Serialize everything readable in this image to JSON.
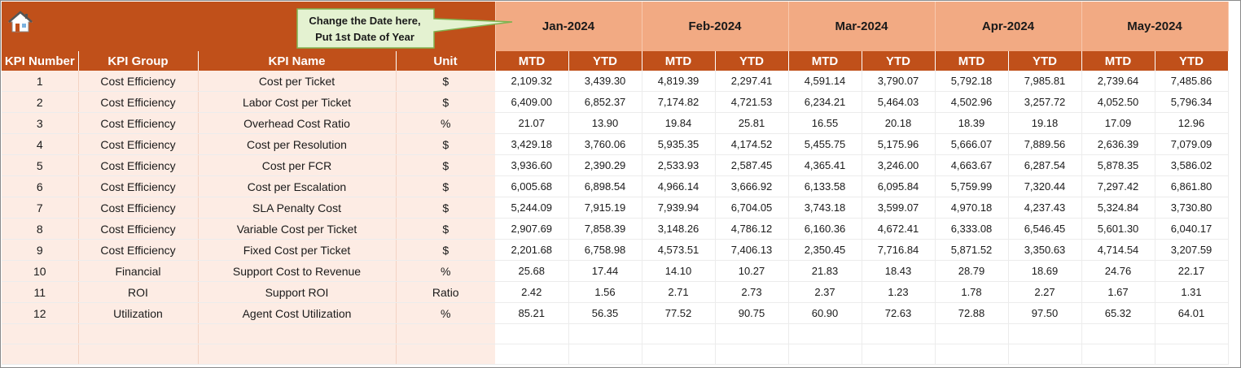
{
  "callout": {
    "line1": "Change the Date here,",
    "line2": "Put 1st Date of Year"
  },
  "icons": {
    "home": "home-icon"
  },
  "months": [
    "Jan-2024",
    "Feb-2024",
    "Mar-2024",
    "Apr-2024",
    "May-2024"
  ],
  "columns": {
    "kpi_number": "KPI Number",
    "kpi_group": "KPI Group",
    "kpi_name": "KPI Name",
    "unit": "Unit",
    "mtd": "MTD",
    "ytd": "YTD"
  },
  "rows": [
    {
      "no": "1",
      "group": "Cost Efficiency",
      "name": "Cost per Ticket",
      "unit": "$",
      "values": [
        "2,109.32",
        "3,439.30",
        "4,819.39",
        "2,297.41",
        "4,591.14",
        "3,790.07",
        "5,792.18",
        "7,985.81",
        "2,739.64",
        "7,485.86"
      ]
    },
    {
      "no": "2",
      "group": "Cost Efficiency",
      "name": "Labor Cost per Ticket",
      "unit": "$",
      "values": [
        "6,409.00",
        "6,852.37",
        "7,174.82",
        "4,721.53",
        "6,234.21",
        "5,464.03",
        "4,502.96",
        "3,257.72",
        "4,052.50",
        "5,796.34"
      ]
    },
    {
      "no": "3",
      "group": "Cost Efficiency",
      "name": "Overhead Cost Ratio",
      "unit": "%",
      "values": [
        "21.07",
        "13.90",
        "19.84",
        "25.81",
        "16.55",
        "20.18",
        "18.39",
        "19.18",
        "17.09",
        "12.96"
      ]
    },
    {
      "no": "4",
      "group": "Cost Efficiency",
      "name": "Cost per Resolution",
      "unit": "$",
      "values": [
        "3,429.18",
        "3,760.06",
        "5,935.35",
        "4,174.52",
        "5,455.75",
        "5,175.96",
        "5,666.07",
        "7,889.56",
        "2,636.39",
        "7,079.09"
      ]
    },
    {
      "no": "5",
      "group": "Cost Efficiency",
      "name": "Cost per FCR",
      "unit": "$",
      "values": [
        "3,936.60",
        "2,390.29",
        "2,533.93",
        "2,587.45",
        "4,365.41",
        "3,246.00",
        "4,663.67",
        "6,287.54",
        "5,878.35",
        "3,586.02"
      ]
    },
    {
      "no": "6",
      "group": "Cost Efficiency",
      "name": "Cost per Escalation",
      "unit": "$",
      "values": [
        "6,005.68",
        "6,898.54",
        "4,966.14",
        "3,666.92",
        "6,133.58",
        "6,095.84",
        "5,759.99",
        "7,320.44",
        "7,297.42",
        "6,861.80"
      ]
    },
    {
      "no": "7",
      "group": "Cost Efficiency",
      "name": "SLA Penalty Cost",
      "unit": "$",
      "values": [
        "5,244.09",
        "7,915.19",
        "7,939.94",
        "6,704.05",
        "3,743.18",
        "3,599.07",
        "4,970.18",
        "4,237.43",
        "5,324.84",
        "3,730.80"
      ]
    },
    {
      "no": "8",
      "group": "Cost Efficiency",
      "name": "Variable Cost per Ticket",
      "unit": "$",
      "values": [
        "2,907.69",
        "7,858.39",
        "3,148.26",
        "4,786.12",
        "6,160.36",
        "4,672.41",
        "6,333.08",
        "6,546.45",
        "5,601.30",
        "6,040.17"
      ]
    },
    {
      "no": "9",
      "group": "Cost Efficiency",
      "name": "Fixed Cost per Ticket",
      "unit": "$",
      "values": [
        "2,201.68",
        "6,758.98",
        "4,573.51",
        "7,406.13",
        "2,350.45",
        "7,716.84",
        "5,871.52",
        "3,350.63",
        "4,714.54",
        "3,207.59"
      ]
    },
    {
      "no": "10",
      "group": "Financial",
      "name": "Support Cost to Revenue",
      "unit": "%",
      "values": [
        "25.68",
        "17.44",
        "14.10",
        "10.27",
        "21.83",
        "18.43",
        "28.79",
        "18.69",
        "24.76",
        "22.17"
      ]
    },
    {
      "no": "11",
      "group": "ROI",
      "name": "Support ROI",
      "unit": "Ratio",
      "values": [
        "2.42",
        "1.56",
        "2.71",
        "2.73",
        "2.37",
        "1.23",
        "1.78",
        "2.27",
        "1.67",
        "1.31"
      ]
    },
    {
      "no": "12",
      "group": "Utilization",
      "name": "Agent Cost Utilization",
      "unit": "%",
      "values": [
        "85.21",
        "56.35",
        "77.52",
        "90.75",
        "60.90",
        "72.63",
        "72.88",
        "97.50",
        "65.32",
        "64.01"
      ]
    }
  ],
  "blank_rows": 2,
  "colors": {
    "header_dark": "#c0501a",
    "header_light": "#f2aa83",
    "left_band": "#fdece4",
    "callout_fill": "#e4f2d1",
    "callout_border": "#7fb24f"
  }
}
